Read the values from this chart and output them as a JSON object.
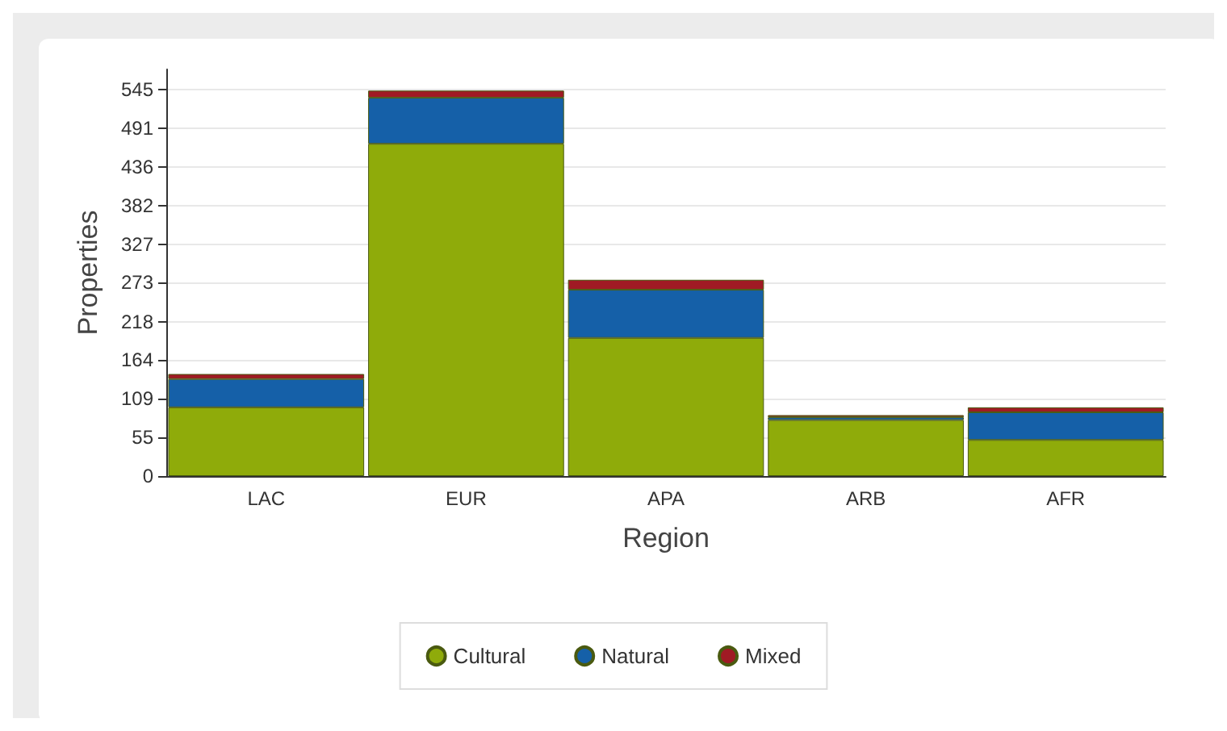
{
  "chart_data": {
    "type": "bar",
    "stacked": true,
    "xlabel": "Region",
    "ylabel": "Properties",
    "categories": [
      "LAC",
      "EUR",
      "APA",
      "ARB",
      "AFR"
    ],
    "series": [
      {
        "name": "Cultural",
        "color": "#8fab0a",
        "values": [
          97,
          469,
          195,
          79,
          51
        ]
      },
      {
        "name": "Natural",
        "color": "#1560a8",
        "values": [
          40,
          65,
          68,
          4,
          39
        ]
      },
      {
        "name": "Mixed",
        "color": "#a01a24",
        "values": [
          7,
          10,
          14,
          3,
          7
        ]
      }
    ],
    "ylim": [
      0,
      574
    ],
    "yticks": [
      0,
      55,
      109,
      164,
      218,
      273,
      327,
      382,
      436,
      491,
      545
    ],
    "grid": "y",
    "legend": "bottom"
  }
}
